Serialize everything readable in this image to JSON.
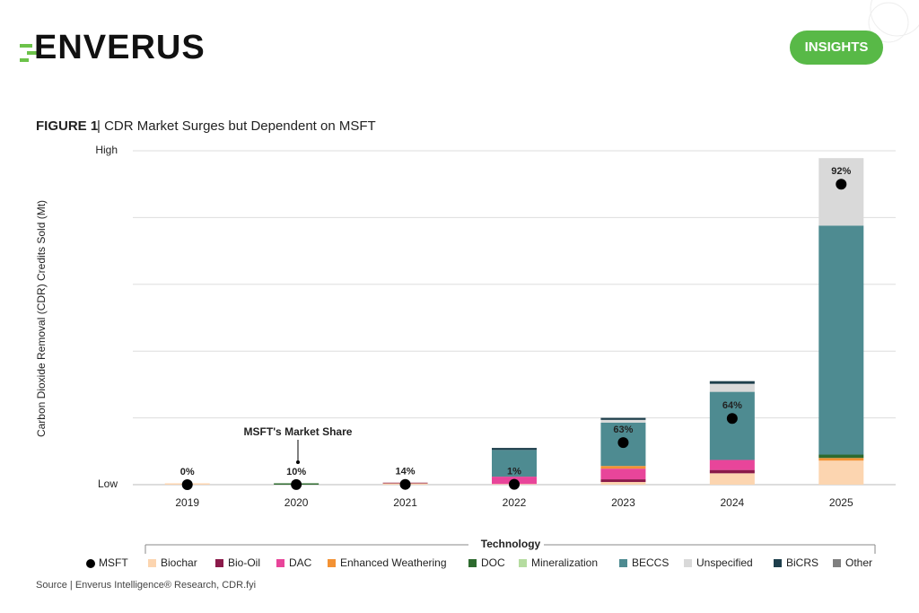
{
  "brand": "ENVERUS",
  "button": "INSIGHTS",
  "source": "Source | Enverus Intelligence® Research, CDR.fyi",
  "chart_data": {
    "type": "stacked_bar",
    "figure_label": "FIGURE 1",
    "title": "| CDR Market Surges but Dependent on MSFT",
    "y_label": "Carbon Dioxide Removal (CDR) Credits Sold (Mt)",
    "annotation": "MSFT's Market Share",
    "legend_title": "Technology",
    "categories": [
      "2019",
      "2020",
      "2021",
      "2022",
      "2023",
      "2024",
      "2025"
    ],
    "ylim": [
      0,
      5
    ],
    "yticks": [
      {
        "value": 0,
        "label": "Low"
      },
      {
        "value": 1,
        "label": null
      },
      {
        "value": 2,
        "label": null
      },
      {
        "value": 3,
        "label": null
      },
      {
        "value": 4,
        "label": null
      },
      {
        "value": 5,
        "label": "High"
      }
    ],
    "grid": true,
    "series": [
      {
        "name": "Biochar",
        "color": "#fcd5b0",
        "values": [
          0.02,
          0,
          0.02,
          0.01,
          0.04,
          0.17,
          0.36
        ]
      },
      {
        "name": "Bio-Oil",
        "color": "#8b1a4a",
        "values": [
          0,
          0,
          0.01,
          0,
          0.04,
          0.05,
          0
        ]
      },
      {
        "name": "DAC",
        "color": "#e8459a",
        "values": [
          0,
          0,
          0,
          0.11,
          0.16,
          0.15,
          0
        ]
      },
      {
        "name": "Enhanced Weathering",
        "color": "#f39234",
        "values": [
          0,
          0,
          0,
          0,
          0.04,
          0,
          0.04
        ]
      },
      {
        "name": "DOC",
        "color": "#2d6a2e",
        "values": [
          0,
          0.02,
          0,
          0,
          0,
          0,
          0.05
        ]
      },
      {
        "name": "Mineralization",
        "color": "#b5dca0",
        "values": [
          0,
          0,
          0,
          0,
          0,
          0,
          0
        ]
      },
      {
        "name": "BECCS",
        "color": "#4e8b91",
        "values": [
          0,
          0,
          0,
          0.4,
          0.65,
          1.02,
          3.43
        ]
      },
      {
        "name": "Unspecified",
        "color": "#d9d9d9",
        "values": [
          0,
          0,
          0,
          0,
          0.04,
          0.12,
          1.01
        ]
      },
      {
        "name": "BiCRS",
        "color": "#1e3f4c",
        "values": [
          0,
          0,
          0,
          0.03,
          0.03,
          0.04,
          0
        ]
      },
      {
        "name": "Other",
        "color": "#808080",
        "values": [
          0,
          0,
          0,
          0,
          0,
          0,
          0
        ]
      }
    ],
    "msft": {
      "name": "MSFT",
      "color": "#000000",
      "values": [
        0,
        10,
        14,
        1,
        63,
        64,
        92
      ],
      "value_labels": [
        "0%",
        "10%",
        "14%",
        "1%",
        "63%",
        "64%",
        "92%"
      ]
    }
  }
}
